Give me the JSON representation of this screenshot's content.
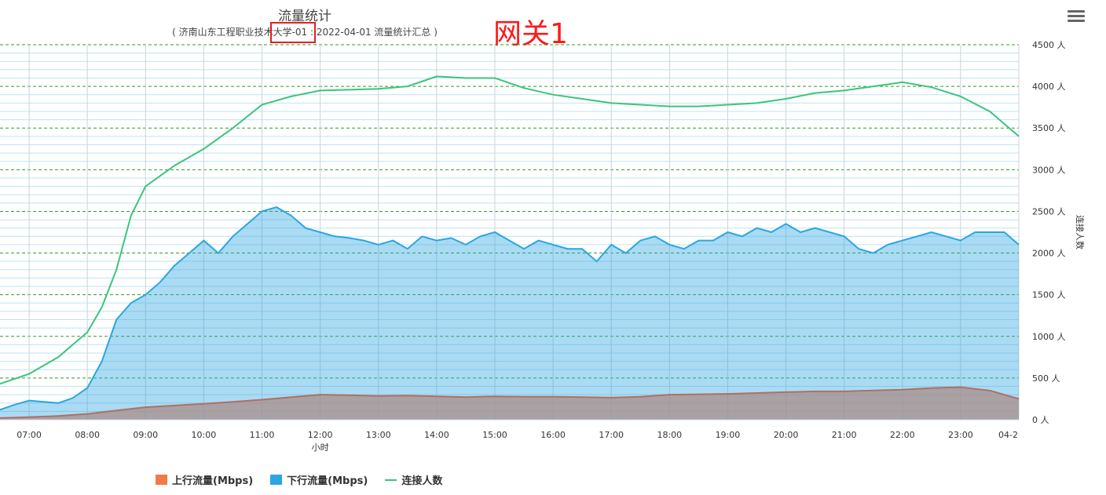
{
  "title": "流量统计",
  "subtitle": "( 济南山东工程职业技术大学-01 : 2022-04-01 流量统计汇总 )",
  "annotation": "网关1",
  "colors": {
    "upload": "#f07a4a",
    "download": "#2aa6e0",
    "connections": "#3cc47c"
  },
  "chart_data": {
    "type": "area",
    "xlabel": "小时",
    "ylabel_right": "连接人数",
    "x_ticks": [
      "07:00",
      "08:00",
      "09:00",
      "10:00",
      "11:00",
      "12:00",
      "13:00",
      "14:00",
      "15:00",
      "16:00",
      "17:00",
      "18:00",
      "19:00",
      "20:00",
      "21:00",
      "22:00",
      "23:00",
      "04-2"
    ],
    "y_ticks": [
      "0 人",
      "500 人",
      "1000 人",
      "1500 人",
      "2000 人",
      "2500 人",
      "3000 人",
      "3500 人",
      "4000 人",
      "4500 人"
    ],
    "ylim": [
      0,
      4500
    ],
    "x_range_hours": [
      6.5,
      24.0
    ],
    "series": [
      {
        "name": "上行流量(Mbps)",
        "key": "upload",
        "x": [
          6.5,
          7.0,
          7.5,
          8.0,
          8.5,
          9.0,
          9.5,
          10.0,
          10.5,
          11.0,
          11.5,
          12.0,
          12.5,
          13.0,
          13.5,
          14.0,
          14.5,
          15.0,
          15.5,
          16.0,
          16.5,
          17.0,
          17.5,
          18.0,
          18.5,
          19.0,
          19.5,
          20.0,
          20.5,
          21.0,
          21.5,
          22.0,
          22.5,
          23.0,
          23.5,
          24.0
        ],
        "y": [
          20,
          30,
          45,
          70,
          110,
          150,
          170,
          190,
          215,
          240,
          270,
          300,
          295,
          285,
          290,
          280,
          270,
          280,
          275,
          275,
          270,
          265,
          275,
          300,
          305,
          310,
          320,
          330,
          340,
          340,
          350,
          360,
          380,
          390,
          350,
          250
        ]
      },
      {
        "name": "下行流量(Mbps)",
        "key": "download",
        "x": [
          6.5,
          6.75,
          7.0,
          7.5,
          7.75,
          8.0,
          8.25,
          8.5,
          8.75,
          9.0,
          9.25,
          9.5,
          9.75,
          10.0,
          10.25,
          10.5,
          10.75,
          11.0,
          11.25,
          11.5,
          11.75,
          12.0,
          12.25,
          12.5,
          12.75,
          13.0,
          13.25,
          13.5,
          13.75,
          14.0,
          14.25,
          14.5,
          14.75,
          15.0,
          15.25,
          15.5,
          15.75,
          16.0,
          16.25,
          16.5,
          16.75,
          17.0,
          17.25,
          17.5,
          17.75,
          18.0,
          18.25,
          18.5,
          18.75,
          19.0,
          19.25,
          19.5,
          19.75,
          20.0,
          20.25,
          20.5,
          20.75,
          21.0,
          21.25,
          21.5,
          21.75,
          22.0,
          22.25,
          22.5,
          22.75,
          23.0,
          23.25,
          23.5,
          23.75,
          24.0
        ],
        "y": [
          120,
          180,
          230,
          200,
          260,
          380,
          700,
          1200,
          1400,
          1500,
          1650,
          1850,
          2000,
          2150,
          2000,
          2200,
          2350,
          2500,
          2550,
          2450,
          2300,
          2250,
          2200,
          2180,
          2150,
          2100,
          2150,
          2050,
          2200,
          2150,
          2180,
          2100,
          2200,
          2250,
          2150,
          2050,
          2150,
          2100,
          2050,
          2050,
          1900,
          2100,
          2000,
          2150,
          2200,
          2100,
          2050,
          2150,
          2150,
          2250,
          2200,
          2300,
          2250,
          2350,
          2250,
          2300,
          2250,
          2200,
          2050,
          2000,
          2100,
          2150,
          2200,
          2250,
          2200,
          2150,
          2250,
          2250,
          2250,
          2100
        ]
      },
      {
        "name": "连接人数",
        "key": "connections",
        "x": [
          6.5,
          7.0,
          7.5,
          8.0,
          8.25,
          8.5,
          8.75,
          9.0,
          9.5,
          10.0,
          10.5,
          11.0,
          11.5,
          12.0,
          12.5,
          13.0,
          13.5,
          14.0,
          14.5,
          15.0,
          15.5,
          16.0,
          16.5,
          17.0,
          17.5,
          18.0,
          18.5,
          19.0,
          19.5,
          20.0,
          20.5,
          21.0,
          21.5,
          22.0,
          22.5,
          23.0,
          23.5,
          23.75,
          24.0
        ],
        "y": [
          430,
          550,
          750,
          1050,
          1350,
          1800,
          2450,
          2800,
          3050,
          3250,
          3500,
          3780,
          3880,
          3950,
          3960,
          3970,
          4000,
          4120,
          4100,
          4100,
          3980,
          3900,
          3850,
          3800,
          3780,
          3760,
          3760,
          3780,
          3800,
          3850,
          3920,
          3950,
          4000,
          4050,
          3990,
          3880,
          3700,
          3550,
          3400
        ]
      }
    ]
  },
  "legend": {
    "upload": "上行流量(Mbps)",
    "download": "下行流量(Mbps)",
    "connections": "连接人数"
  },
  "menu_icon": "hamburger-menu-icon"
}
